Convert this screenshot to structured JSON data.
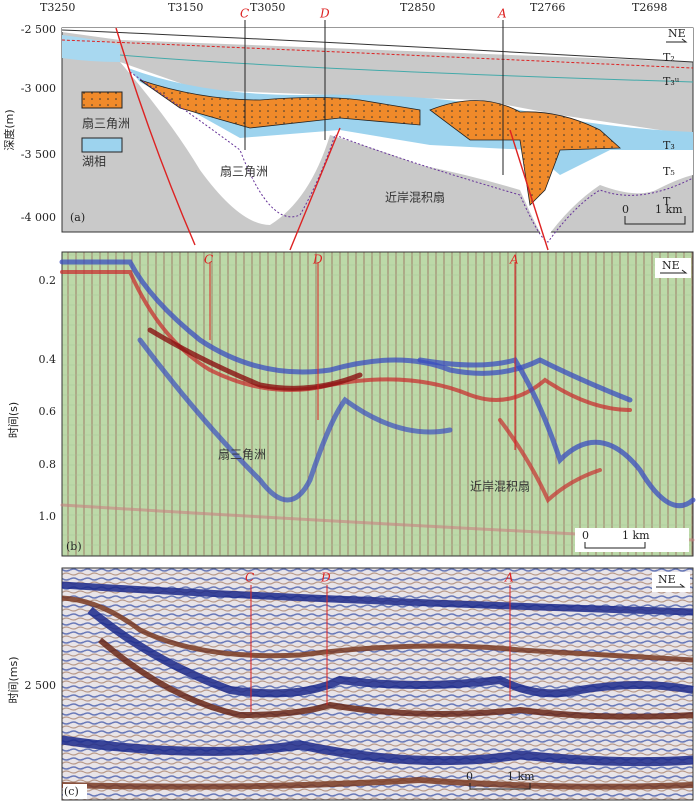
{
  "panel_a": {
    "label": "(a)",
    "top_labels": [
      "T3250",
      "T3150",
      "T3050",
      "T2850",
      "T2766",
      "T2698"
    ],
    "wells": [
      "C",
      "D",
      "A"
    ],
    "y_axis_title": "深度(m)",
    "y_ticks": [
      "-2 500",
      "-3 000",
      "-3 500",
      "-4 000"
    ],
    "legend": [
      "扇三角洲",
      "湖相"
    ],
    "annotations": [
      "扇三角洲",
      "近岸混积扇"
    ],
    "horizons": [
      "T₂",
      "T₃ᵘ",
      "T₃",
      "T₅",
      "T"
    ],
    "north": "NE",
    "scale": [
      "0",
      "1 km"
    ]
  },
  "panel_b": {
    "label": "(b)",
    "wells": [
      "C",
      "D",
      "A"
    ],
    "y_axis_title": "时间(s)",
    "y_ticks": [
      "0.2",
      "0.4",
      "0.6",
      "0.8",
      "1.0"
    ],
    "annotations": [
      "扇三角洲",
      "近岸混积扇"
    ],
    "north": "NE",
    "scale": [
      "0",
      "1 km"
    ]
  },
  "panel_c": {
    "label": "(c)",
    "wells": [
      "C",
      "D",
      "A"
    ],
    "y_axis_title": "时间(ms)",
    "y_ticks": [
      "2 500"
    ],
    "north": "NE",
    "scale": [
      "0",
      "1 km"
    ]
  }
}
